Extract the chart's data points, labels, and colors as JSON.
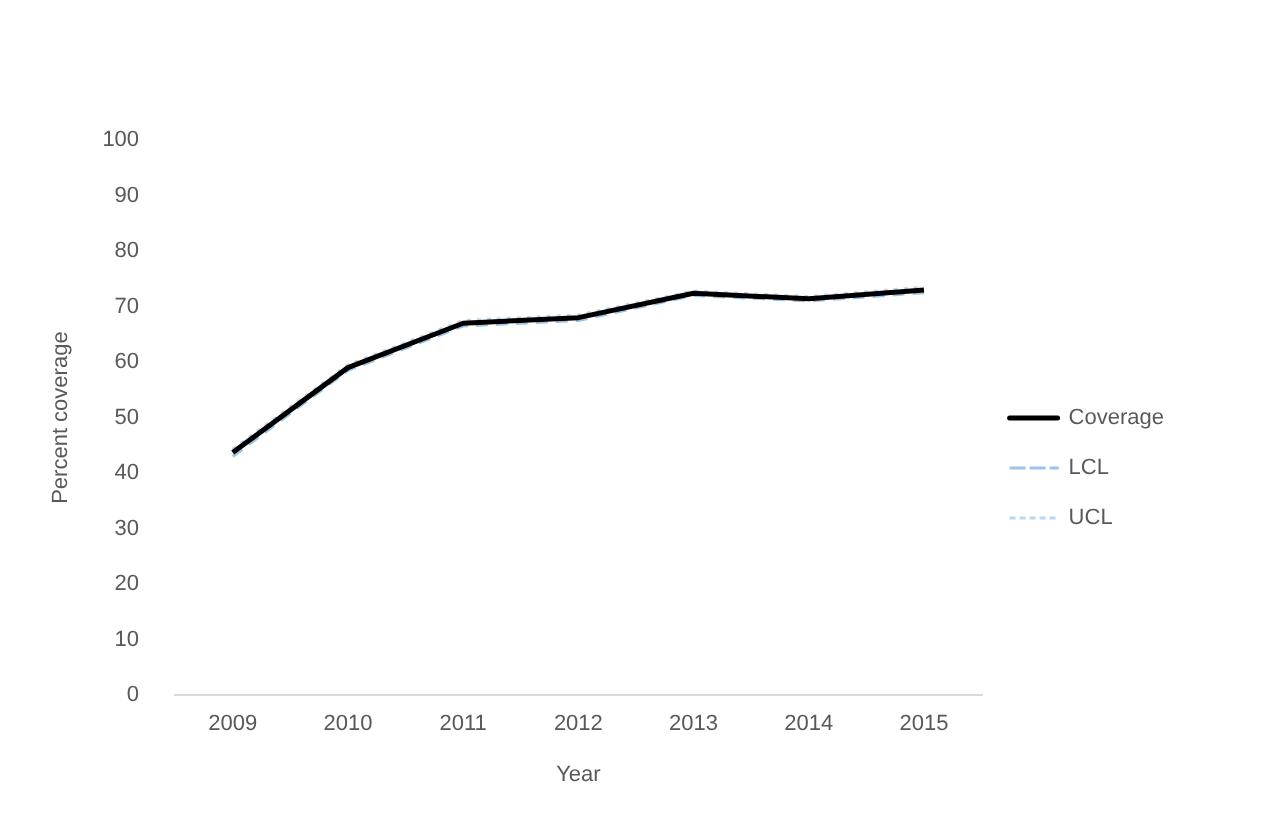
{
  "chart_data": {
    "type": "line",
    "xlabel": "Year",
    "ylabel": "Percent coverage",
    "categories": [
      "2009",
      "2010",
      "2011",
      "2012",
      "2013",
      "2014",
      "2015"
    ],
    "series": [
      {
        "name": "Coverage",
        "color": "#000000",
        "line_style": "solid",
        "values": [
          43.7,
          59,
          67,
          68,
          72.4,
          71.4,
          73
        ]
      },
      {
        "name": "LCL",
        "color": "#9dc3e6",
        "line_style": "dashed",
        "values": [
          43,
          58.5,
          66.5,
          67.5,
          72,
          71,
          72.5
        ]
      },
      {
        "name": "UCL",
        "color": "#bdd7ee",
        "line_style": "dotted",
        "values": [
          44.3,
          59.5,
          67.5,
          68.5,
          72.8,
          71.8,
          73.5
        ]
      }
    ],
    "ylim": [
      0,
      100
    ],
    "yticks": [
      0,
      10,
      20,
      30,
      40,
      50,
      60,
      70,
      80,
      90,
      100
    ],
    "grid": false,
    "legend": "right",
    "marker": "none"
  }
}
